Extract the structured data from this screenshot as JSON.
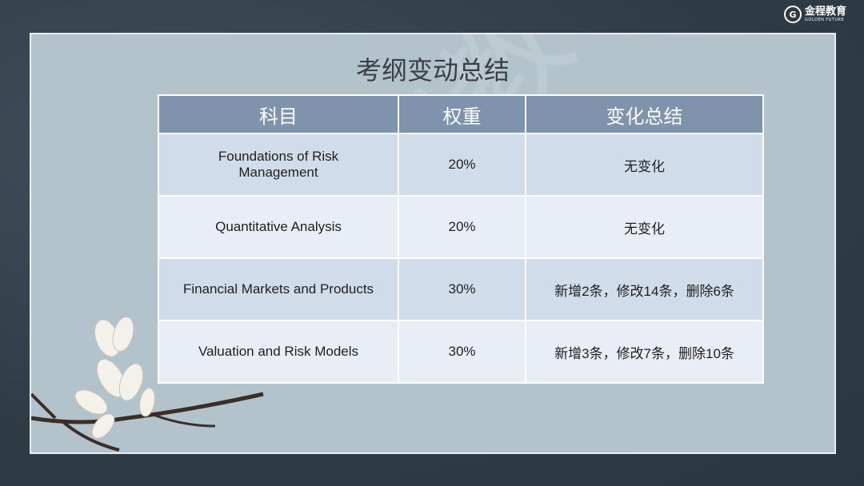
{
  "logo": {
    "cn": "金程教育",
    "en": "GOLDEN FUTURE",
    "mark": "G"
  },
  "slide": {
    "title": "考纲变动总结",
    "watermark": "金程教育",
    "table": {
      "headers": [
        "科目",
        "权重",
        "变化总结"
      ],
      "rows": [
        {
          "subject": "Foundations of Risk Management",
          "weight": "20%",
          "summary": "无变化"
        },
        {
          "subject": "Quantitative Analysis",
          "weight": "20%",
          "summary": "无变化"
        },
        {
          "subject": "Financial Markets and Products",
          "weight": "30%",
          "summary": "新增2条，修改14条，删除6条"
        },
        {
          "subject": "Valuation and Risk Models",
          "weight": "30%",
          "summary": "新增3条，修改7条，删除10条"
        }
      ]
    }
  },
  "colors": {
    "background": "#34434e",
    "panel": "#b3c3cb",
    "header": "#7f93ad",
    "row_odd": "#d0dcea",
    "row_even": "#e9edf5"
  }
}
